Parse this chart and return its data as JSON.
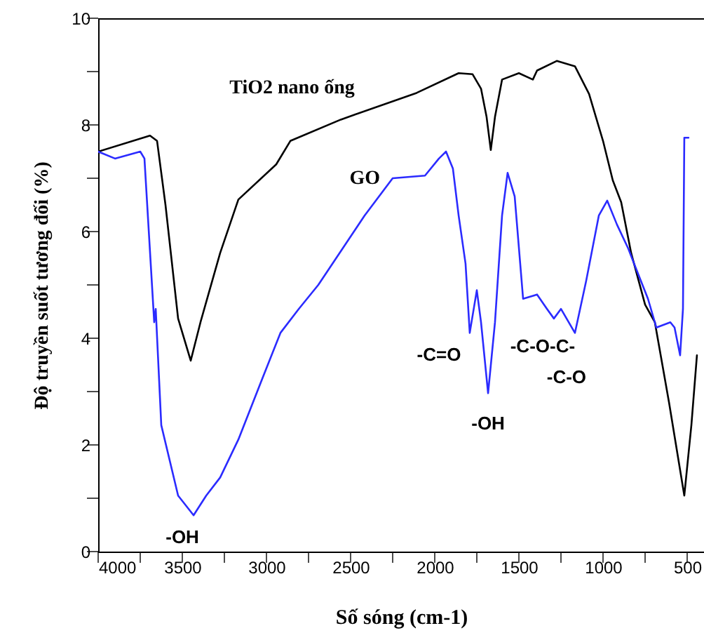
{
  "chart_data": {
    "type": "line",
    "xlabel": "Số sóng (cm-1)",
    "ylabel": "Độ truyền suốt tương đối (%)",
    "xlim": [
      4000,
      400
    ],
    "ylim": [
      0,
      10
    ],
    "xticks": [
      4000,
      {
        "value": 3750,
        "label": null
      },
      3500,
      {
        "value": 3250,
        "label": null
      },
      3000,
      {
        "value": 2750,
        "label": null
      },
      2500,
      {
        "value": 2250,
        "label": null
      },
      2000,
      {
        "value": 1750,
        "label": null
      },
      1500,
      {
        "value": 1250,
        "label": null
      },
      1000,
      {
        "value": 750,
        "label": null
      },
      500
    ],
    "yticks": [
      0,
      {
        "value": 1,
        "label": null
      },
      2,
      {
        "value": 3,
        "label": null
      },
      4,
      {
        "value": 5,
        "label": null
      },
      6,
      {
        "value": 7,
        "label": null
      },
      8,
      {
        "value": 9,
        "label": null
      },
      10
    ],
    "grid": false,
    "marker": "none",
    "line_style": "solid",
    "series": [
      {
        "name": "TiO2 nano ống",
        "color": "#000000",
        "x": [
          4000,
          3692,
          3650,
          3600,
          3525,
          3450,
          3392,
          3275,
          3167,
          2942,
          2858,
          2558,
          2108,
          1858,
          1775,
          1725,
          1692,
          1667,
          1642,
          1600,
          1500,
          1417,
          1392,
          1275,
          1167,
          1083,
          1000,
          942,
          892,
          833,
          750,
          692,
          608,
          517,
          475,
          442
        ],
        "values": [
          7.5,
          7.8,
          7.7,
          6.5,
          4.37,
          3.58,
          4.3,
          5.6,
          6.6,
          7.26,
          7.7,
          8.1,
          8.6,
          8.97,
          8.95,
          8.68,
          8.15,
          7.53,
          8.15,
          8.85,
          8.97,
          8.85,
          9.02,
          9.2,
          9.1,
          8.58,
          7.7,
          6.96,
          6.55,
          5.6,
          4.63,
          4.3,
          2.8,
          1.05,
          2.37,
          3.68
        ]
      },
      {
        "name": "GO",
        "color": "#2b2bff",
        "x": [
          4000,
          3900,
          3750,
          3725,
          3667,
          3658,
          3625,
          3525,
          3433,
          3358,
          3275,
          3167,
          3025,
          2917,
          2808,
          2692,
          2417,
          2250,
          2058,
          1975,
          1933,
          1892,
          1858,
          1817,
          1792,
          1750,
          1725,
          1683,
          1642,
          1600,
          1567,
          1525,
          1475,
          1392,
          1333,
          1292,
          1250,
          1167,
          1100,
          1025,
          975,
          917,
          850,
          808,
          733,
          683,
          600,
          575,
          542,
          525,
          517,
          492
        ],
        "values": [
          7.5,
          7.37,
          7.5,
          7.37,
          4.3,
          4.55,
          2.37,
          1.05,
          0.68,
          1.05,
          1.39,
          2.1,
          3.24,
          4.1,
          4.55,
          5.0,
          6.3,
          7.0,
          7.05,
          7.37,
          7.5,
          7.18,
          6.3,
          5.4,
          4.1,
          4.9,
          4.3,
          2.97,
          4.3,
          6.3,
          7.1,
          6.66,
          4.74,
          4.82,
          4.55,
          4.37,
          4.55,
          4.1,
          5.08,
          6.3,
          6.58,
          6.13,
          5.68,
          5.34,
          4.74,
          4.2,
          4.3,
          4.2,
          3.68,
          4.55,
          7.76,
          7.76
        ]
      }
    ],
    "annotations": [
      {
        "text": "-OH",
        "x": 3433,
        "y": 0.68
      },
      {
        "text": "-C=O",
        "x": 1792,
        "y": 4.1
      },
      {
        "text": "-OH",
        "x": 1683,
        "y": 2.97
      },
      {
        "text": "-C-O-C-",
        "x": 1292,
        "y": 4.37
      },
      {
        "text": "-C-O",
        "x": 1167,
        "y": 4.1
      }
    ]
  }
}
